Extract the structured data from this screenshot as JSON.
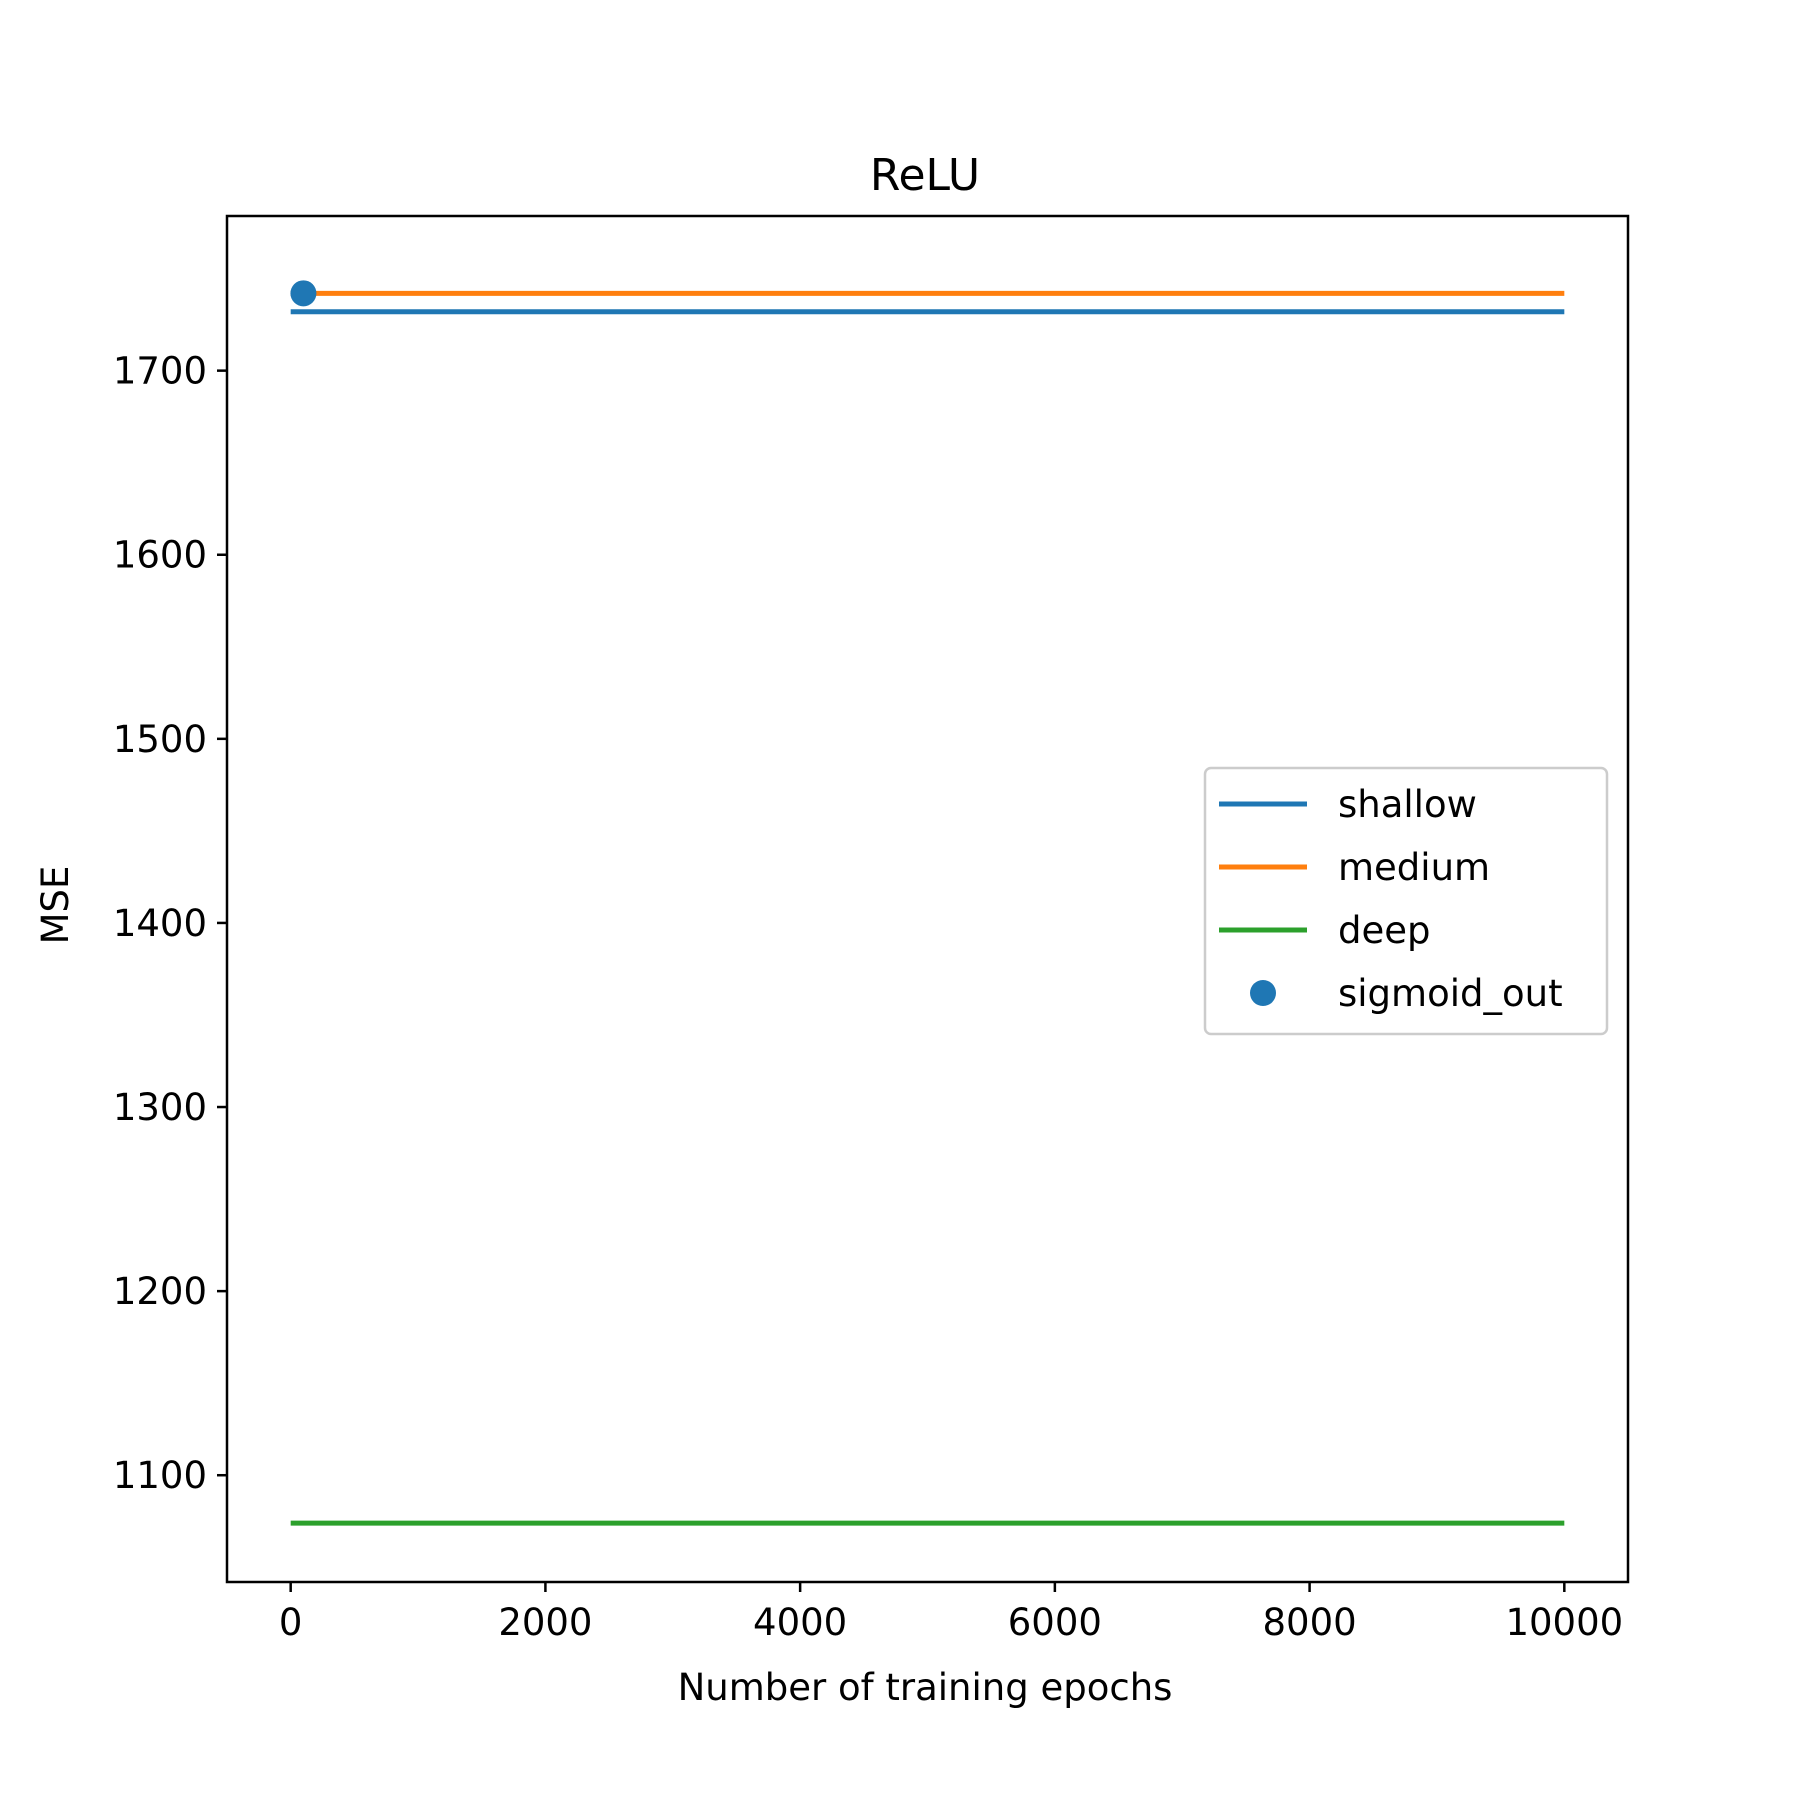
{
  "chart_data": {
    "type": "line",
    "title": "ReLU",
    "xlabel": "Number of training epochs",
    "ylabel": "MSE",
    "xlim": [
      -500,
      10500
    ],
    "ylim": [
      1042,
      1784
    ],
    "xticks": [
      0,
      2000,
      4000,
      6000,
      8000,
      10000
    ],
    "xtick_labels": [
      "0",
      "2000",
      "4000",
      "6000",
      "8000",
      "10000"
    ],
    "yticks": [
      1100,
      1200,
      1300,
      1400,
      1500,
      1600,
      1700
    ],
    "ytick_labels": [
      "1100",
      "1200",
      "1300",
      "1400",
      "1500",
      "1600",
      "1700"
    ],
    "grid": false,
    "legend_position": "center-right",
    "series": [
      {
        "name": "shallow",
        "kind": "line",
        "color": "#1f77b4",
        "x": [
          0,
          10000
        ],
        "y": [
          1732,
          1732
        ]
      },
      {
        "name": "medium",
        "kind": "line",
        "color": "#ff7f0e",
        "x": [
          0,
          10000
        ],
        "y": [
          1742,
          1742
        ]
      },
      {
        "name": "deep",
        "kind": "line",
        "color": "#2ca02c",
        "x": [
          0,
          10000
        ],
        "y": [
          1074,
          1074
        ]
      },
      {
        "name": "sigmoid_out",
        "kind": "scatter",
        "color": "#1f77b4",
        "x": [
          100
        ],
        "y": [
          1742
        ]
      }
    ]
  }
}
